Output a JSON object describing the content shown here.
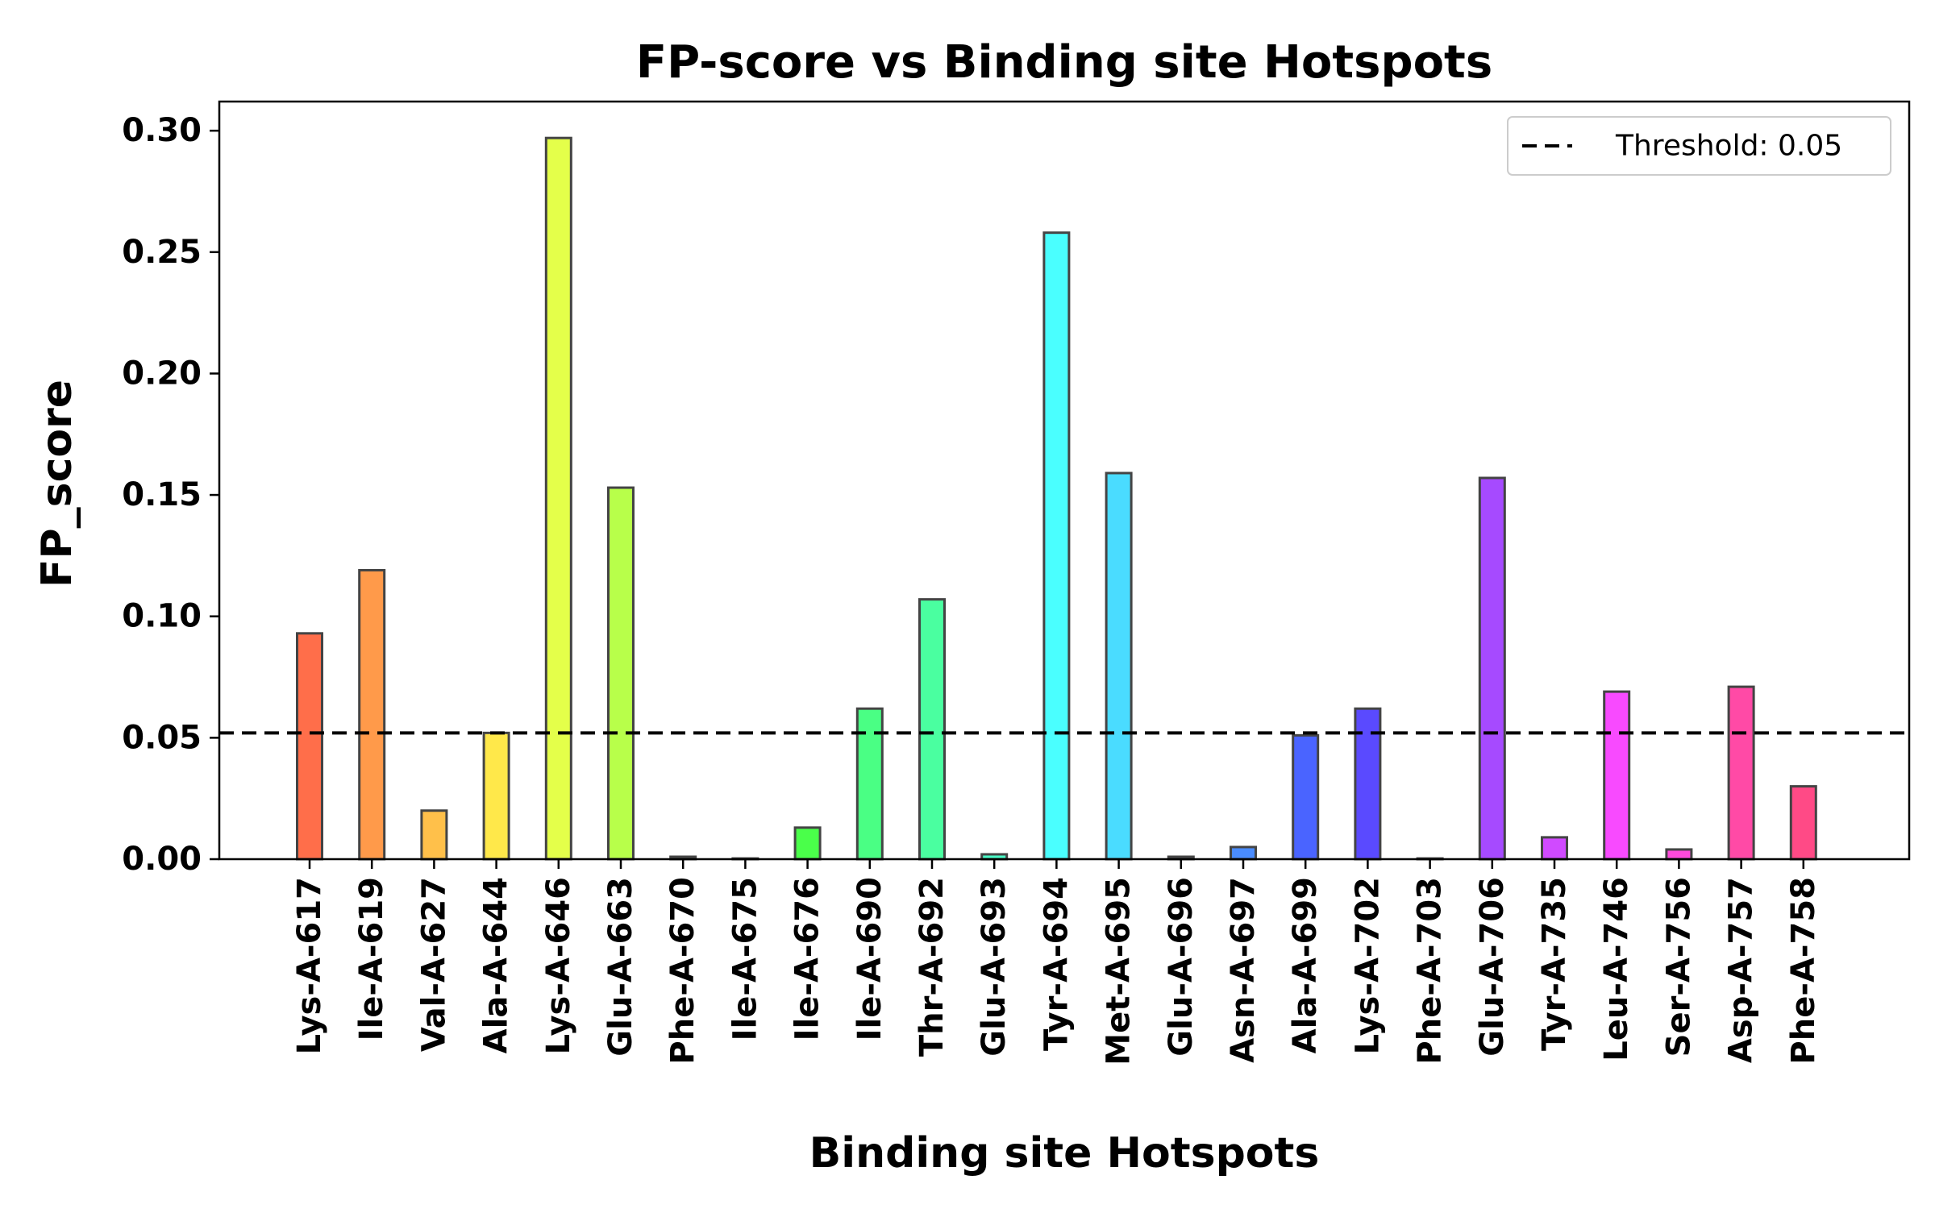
{
  "chart_data": {
    "type": "bar",
    "title": "FP-score vs Binding site Hotspots",
    "xlabel": "Binding site Hotspots",
    "ylabel": "FP_score",
    "ylim": [
      0,
      0.312
    ],
    "yticks": [
      "0.00",
      "0.05",
      "0.10",
      "0.15",
      "0.20",
      "0.25",
      "0.30"
    ],
    "ytick_values": [
      0,
      0.05,
      0.1,
      0.15,
      0.2,
      0.25,
      0.3
    ],
    "categories": [
      "Lys-A-617",
      "Ile-A-619",
      "Val-A-627",
      "Ala-A-644",
      "Lys-A-646",
      "Glu-A-663",
      "Phe-A-670",
      "Ile-A-675",
      "Ile-A-676",
      "Ile-A-690",
      "Thr-A-692",
      "Glu-A-693",
      "Tyr-A-694",
      "Met-A-695",
      "Glu-A-696",
      "Asn-A-697",
      "Ala-A-699",
      "Lys-A-702",
      "Phe-A-703",
      "Glu-A-706",
      "Tyr-A-735",
      "Leu-A-746",
      "Ser-A-756",
      "Asp-A-757",
      "Phe-A-758"
    ],
    "values": [
      0.093,
      0.119,
      0.02,
      0.052,
      0.297,
      0.153,
      0.001,
      0.0003,
      0.013,
      0.062,
      0.107,
      0.002,
      0.258,
      0.159,
      0.001,
      0.005,
      0.051,
      0.062,
      0.0003,
      0.157,
      0.009,
      0.069,
      0.004,
      0.071,
      0.03
    ],
    "colors": [
      "#ff6e4a",
      "#ff9a4a",
      "#ffc04a",
      "#ffe84a",
      "#e4ff4a",
      "#b8ff4a",
      "#8cff4a",
      "#6aff4a",
      "#4aff4a",
      "#4aff84",
      "#4affa0",
      "#4affc8",
      "#4affff",
      "#4adcff",
      "#4ab4ff",
      "#4a8cff",
      "#4a64ff",
      "#5a4aff",
      "#7c4aff",
      "#a64aff",
      "#d04aff",
      "#f84aff",
      "#ff4adc",
      "#ff4aa6",
      "#ff4a86"
    ],
    "threshold": {
      "value": 0.052,
      "legend_label": "Threshold: 0.05"
    },
    "legend_position": "top-right",
    "grid": false
  }
}
